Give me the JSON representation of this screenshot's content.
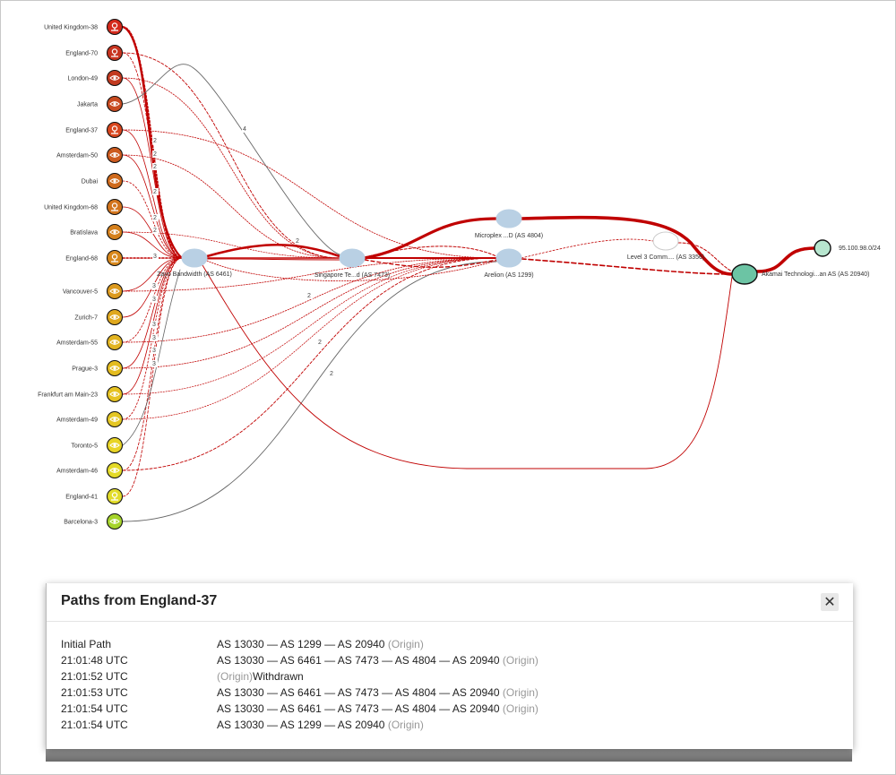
{
  "panel": {
    "title": "Paths from England-37",
    "close_glyph": "✕",
    "rows": [
      {
        "time": "Initial Path",
        "path": "AS 13030 — AS 1299 — AS 20940",
        "origin": "(Origin)",
        "suffix": ""
      },
      {
        "time": "21:01:48 UTC",
        "path": "AS 13030 — AS 6461 — AS 7473 — AS 4804 — AS 20940",
        "origin": "(Origin)",
        "suffix": ""
      },
      {
        "time": "21:01:52 UTC",
        "path": "",
        "origin": "(Origin)",
        "suffix": "Withdrawn"
      },
      {
        "time": "21:01:53 UTC",
        "path": "AS 13030 — AS 6461 — AS 7473 — AS 4804 — AS 20940",
        "origin": "(Origin)",
        "suffix": ""
      },
      {
        "time": "21:01:54 UTC",
        "path": "AS 13030 — AS 6461 — AS 7473 — AS 4804 — AS 20940",
        "origin": "(Origin)",
        "suffix": ""
      },
      {
        "time": "21:01:54 UTC",
        "path": "AS 13030 — AS 1299 — AS 20940",
        "origin": "(Origin)",
        "suffix": ""
      }
    ]
  },
  "graph": {
    "vantage_points": [
      {
        "label": "United Kingdom-38",
        "icon": "pin-icon",
        "color": "#d42a1c"
      },
      {
        "label": "England-70",
        "icon": "pin-icon",
        "color": "#c7331f"
      },
      {
        "label": "London-49",
        "icon": "eye-icon",
        "color": "#c23a20"
      },
      {
        "label": "Jakarta",
        "icon": "eye-icon",
        "color": "#c84a20"
      },
      {
        "label": "England-37",
        "icon": "pin-icon",
        "color": "#d8461e"
      },
      {
        "label": "Amsterdam-50",
        "icon": "eye-icon",
        "color": "#cc5a1e"
      },
      {
        "label": "Dubai",
        "icon": "eye-icon",
        "color": "#cf6a1c"
      },
      {
        "label": "United Kingdom-68",
        "icon": "pin-icon",
        "color": "#d2741c"
      },
      {
        "label": "Bratislava",
        "icon": "eye-icon",
        "color": "#d5801c"
      },
      {
        "label": "England-68",
        "icon": "pin-icon",
        "color": "#d8881c"
      },
      {
        "label": "Vancouver-5",
        "icon": "eye-icon",
        "color": "#dc9a1e"
      },
      {
        "label": "Zurich-7",
        "icon": "eye-icon",
        "color": "#dfa81e"
      },
      {
        "label": "Amsterdam-55",
        "icon": "eye-icon",
        "color": "#e2b420"
      },
      {
        "label": "Prague-3",
        "icon": "eye-icon",
        "color": "#e4bc20"
      },
      {
        "label": "Frankfurt am Main-23",
        "icon": "eye-icon",
        "color": "#e6c222"
      },
      {
        "label": "Amsterdam-49",
        "icon": "eye-icon",
        "color": "#e4c624"
      },
      {
        "label": "Toronto-5",
        "icon": "eye-icon",
        "color": "#e8d426"
      },
      {
        "label": "Amsterdam-46",
        "icon": "eye-icon",
        "color": "#e4da28"
      },
      {
        "label": "England-41",
        "icon": "pin-icon",
        "color": "#e2dc2a"
      },
      {
        "label": "Barcelona-3",
        "icon": "eye-icon",
        "color": "#a6d42c"
      }
    ],
    "as_nodes": [
      {
        "id": "as6461",
        "label": "Zayo Bandwidth (AS 6461)",
        "color": "#b9d0e4"
      },
      {
        "id": "as7473",
        "label": "Singapore Te...d (AS 7473)",
        "color": "#b9d0e4"
      },
      {
        "id": "as4804",
        "label": "Microplex ...D (AS 4804)",
        "color": "#b9d0e4"
      },
      {
        "id": "as1299",
        "label": "Arelion (AS 1299)",
        "color": "#b9d0e4"
      },
      {
        "id": "as3356",
        "label": "Level 3 Comm.... (AS 3356)",
        "color": "#ffffff"
      },
      {
        "id": "as20940",
        "label": "Akamai Technologi...an AS (AS 20940)",
        "color": "#6cc4a4"
      },
      {
        "id": "prefix",
        "label": "95.100.98.0/24",
        "color": "#b7e6cf"
      }
    ],
    "edge_labels": [
      "2",
      "2",
      "2",
      "2",
      "2",
      "3",
      "2",
      "3",
      "4",
      "2",
      "2",
      "3",
      "3",
      "3",
      "3",
      "3",
      "2",
      "2"
    ],
    "colors": {
      "path_red": "#c00000",
      "path_gray": "#666666"
    }
  }
}
